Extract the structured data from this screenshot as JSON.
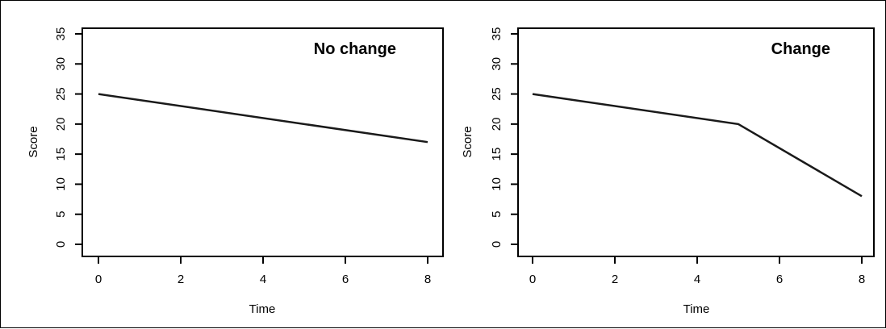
{
  "chart_data": [
    {
      "type": "line",
      "title": "No change",
      "xlabel": "Time",
      "ylabel": "Score",
      "xlim": [
        0,
        8
      ],
      "ylim": [
        0,
        35
      ],
      "x_ticks": [
        0,
        2,
        4,
        6,
        8
      ],
      "y_ticks": [
        0,
        5,
        10,
        15,
        20,
        25,
        30,
        35
      ],
      "grid": false,
      "series": [
        {
          "x": [
            0,
            8
          ],
          "y": [
            25,
            17
          ]
        }
      ],
      "line_color": "#1a1a1a"
    },
    {
      "type": "line",
      "title": "Change",
      "xlabel": "Time",
      "ylabel": "Score",
      "xlim": [
        0,
        8
      ],
      "ylim": [
        0,
        35
      ],
      "x_ticks": [
        0,
        2,
        4,
        6,
        8
      ],
      "y_ticks": [
        0,
        5,
        10,
        15,
        20,
        25,
        30,
        35
      ],
      "grid": false,
      "series": [
        {
          "x": [
            0,
            5,
            8
          ],
          "y": [
            25,
            20,
            8
          ]
        }
      ],
      "line_color": "#1a1a1a"
    }
  ]
}
